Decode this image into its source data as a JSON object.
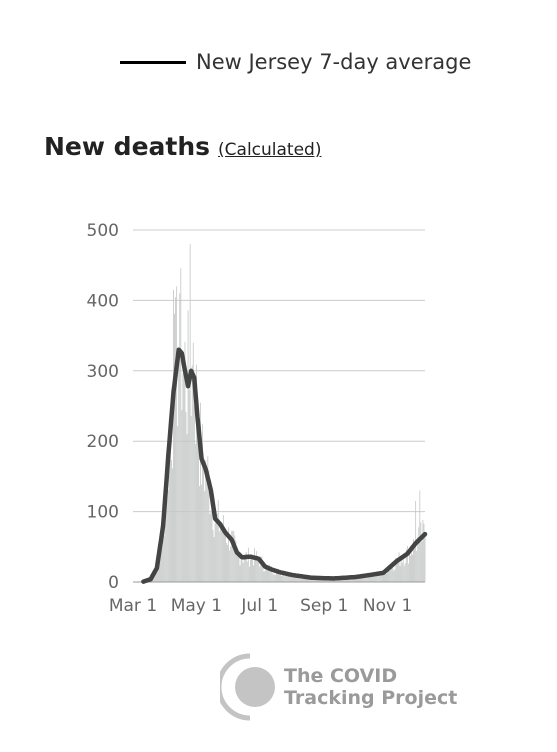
{
  "legend": {
    "label": "New Jersey 7-day average",
    "color": "#000000"
  },
  "title": {
    "main": "New deaths",
    "link": "(Calculated)"
  },
  "logo": {
    "line1": "The COVID",
    "line2": "Tracking Project",
    "color": "#b9b9b9"
  },
  "colors": {
    "bars": "#c4c8c6",
    "line": "#444444",
    "grid": "#cccccc"
  },
  "chart_data": {
    "type": "bar",
    "title": "New deaths",
    "subtitle": "(Calculated)",
    "xlabel": "",
    "ylabel": "",
    "ylim": [
      0,
      500
    ],
    "yticks": [
      0,
      100,
      200,
      300,
      400,
      500
    ],
    "xticks": [
      "Mar 1",
      "May 1",
      "Jul 1",
      "Sep 1",
      "Nov 1"
    ],
    "xrange": [
      "2020-03-01",
      "2020-12-07"
    ],
    "grid": true,
    "legend_position": "top",
    "series": [
      {
        "name": "",
        "kind": "bar",
        "description": "daily new deaths"
      },
      {
        "name": "New Jersey 7-day average",
        "kind": "line"
      }
    ],
    "avg_keypoints": [
      [
        "2020-03-01",
        0
      ],
      [
        "2020-03-10",
        0
      ],
      [
        "2020-03-18",
        4
      ],
      [
        "2020-03-24",
        20
      ],
      [
        "2020-03-30",
        80
      ],
      [
        "2020-04-04",
        180
      ],
      [
        "2020-04-09",
        270
      ],
      [
        "2020-04-14",
        330
      ],
      [
        "2020-04-17",
        325
      ],
      [
        "2020-04-20",
        300
      ],
      [
        "2020-04-23",
        278
      ],
      [
        "2020-04-26",
        300
      ],
      [
        "2020-04-29",
        290
      ],
      [
        "2020-05-02",
        235
      ],
      [
        "2020-05-06",
        175
      ],
      [
        "2020-05-10",
        160
      ],
      [
        "2020-05-15",
        130
      ],
      [
        "2020-05-19",
        90
      ],
      [
        "2020-05-24",
        82
      ],
      [
        "2020-05-29",
        70
      ],
      [
        "2020-06-04",
        60
      ],
      [
        "2020-06-09",
        42
      ],
      [
        "2020-06-14",
        35
      ],
      [
        "2020-06-22",
        36
      ],
      [
        "2020-06-30",
        33
      ],
      [
        "2020-07-06",
        22
      ],
      [
        "2020-07-12",
        18
      ],
      [
        "2020-07-20",
        14
      ],
      [
        "2020-08-01",
        10
      ],
      [
        "2020-08-20",
        6
      ],
      [
        "2020-09-10",
        5
      ],
      [
        "2020-10-01",
        7
      ],
      [
        "2020-10-15",
        10
      ],
      [
        "2020-10-28",
        13
      ],
      [
        "2020-11-10",
        30
      ],
      [
        "2020-11-20",
        40
      ],
      [
        "2020-11-28",
        55
      ],
      [
        "2020-12-07",
        68
      ]
    ],
    "bar_peaks": [
      [
        "2020-04-09",
        415
      ],
      [
        "2020-04-12",
        420
      ],
      [
        "2020-04-15",
        410
      ],
      [
        "2020-04-25",
        480
      ],
      [
        "2020-04-28",
        340
      ],
      [
        "2020-11-28",
        115
      ],
      [
        "2020-12-02",
        130
      ]
    ]
  }
}
